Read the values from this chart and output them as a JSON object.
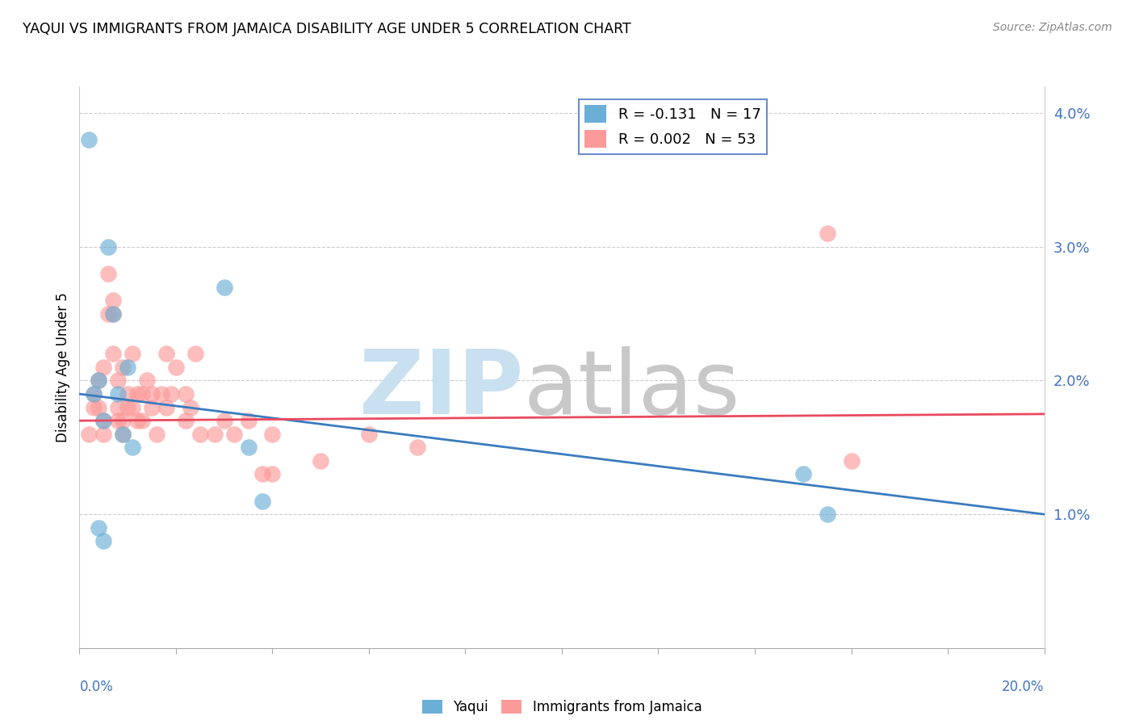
{
  "title": "YAQUI VS IMMIGRANTS FROM JAMAICA DISABILITY AGE UNDER 5 CORRELATION CHART",
  "source": "Source: ZipAtlas.com",
  "ylabel": "Disability Age Under 5",
  "xlim": [
    0.0,
    0.2
  ],
  "ylim": [
    0.0,
    0.042
  ],
  "yticks": [
    0.01,
    0.02,
    0.03,
    0.04
  ],
  "ytick_labels": [
    "1.0%",
    "2.0%",
    "3.0%",
    "4.0%"
  ],
  "xticks": [
    0.0,
    0.02,
    0.04,
    0.06,
    0.08,
    0.1,
    0.12,
    0.14,
    0.16,
    0.18,
    0.2
  ],
  "legend_r_yaqui": "R = -0.131",
  "legend_n_yaqui": "N = 17",
  "legend_r_jamaica": "R = 0.002",
  "legend_n_jamaica": "N = 53",
  "color_yaqui": "#6baed6",
  "color_jamaica": "#fb9a99",
  "color_yaqui_line": "#3a7bbf",
  "color_jamaica_line": "#e84a5f",
  "yaqui_x": [
    0.002,
    0.003,
    0.004,
    0.004,
    0.005,
    0.005,
    0.006,
    0.007,
    0.008,
    0.009,
    0.01,
    0.011,
    0.03,
    0.035,
    0.038,
    0.15,
    0.155
  ],
  "yaqui_y": [
    0.038,
    0.019,
    0.02,
    0.009,
    0.017,
    0.008,
    0.03,
    0.025,
    0.019,
    0.016,
    0.021,
    0.015,
    0.027,
    0.015,
    0.011,
    0.013,
    0.01
  ],
  "jamaica_x": [
    0.002,
    0.003,
    0.003,
    0.004,
    0.004,
    0.005,
    0.005,
    0.005,
    0.006,
    0.006,
    0.007,
    0.007,
    0.007,
    0.008,
    0.008,
    0.008,
    0.009,
    0.009,
    0.009,
    0.01,
    0.01,
    0.011,
    0.011,
    0.012,
    0.012,
    0.013,
    0.013,
    0.014,
    0.015,
    0.015,
    0.016,
    0.017,
    0.018,
    0.018,
    0.019,
    0.02,
    0.022,
    0.022,
    0.023,
    0.024,
    0.025,
    0.028,
    0.03,
    0.032,
    0.035,
    0.038,
    0.04,
    0.04,
    0.05,
    0.06,
    0.07,
    0.155,
    0.16
  ],
  "jamaica_y": [
    0.016,
    0.018,
    0.019,
    0.018,
    0.02,
    0.016,
    0.017,
    0.021,
    0.025,
    0.028,
    0.022,
    0.025,
    0.026,
    0.017,
    0.018,
    0.02,
    0.016,
    0.017,
    0.021,
    0.018,
    0.019,
    0.018,
    0.022,
    0.017,
    0.019,
    0.017,
    0.019,
    0.02,
    0.018,
    0.019,
    0.016,
    0.019,
    0.018,
    0.022,
    0.019,
    0.021,
    0.017,
    0.019,
    0.018,
    0.022,
    0.016,
    0.016,
    0.017,
    0.016,
    0.017,
    0.013,
    0.016,
    0.013,
    0.014,
    0.016,
    0.015,
    0.031,
    0.014
  ],
  "yaqui_line": [
    0.019,
    0.01
  ],
  "jamaica_line": [
    0.017,
    0.0175
  ],
  "watermark_zip_color": "#c8e0f0",
  "watermark_atlas_color": "#c8c8c8"
}
